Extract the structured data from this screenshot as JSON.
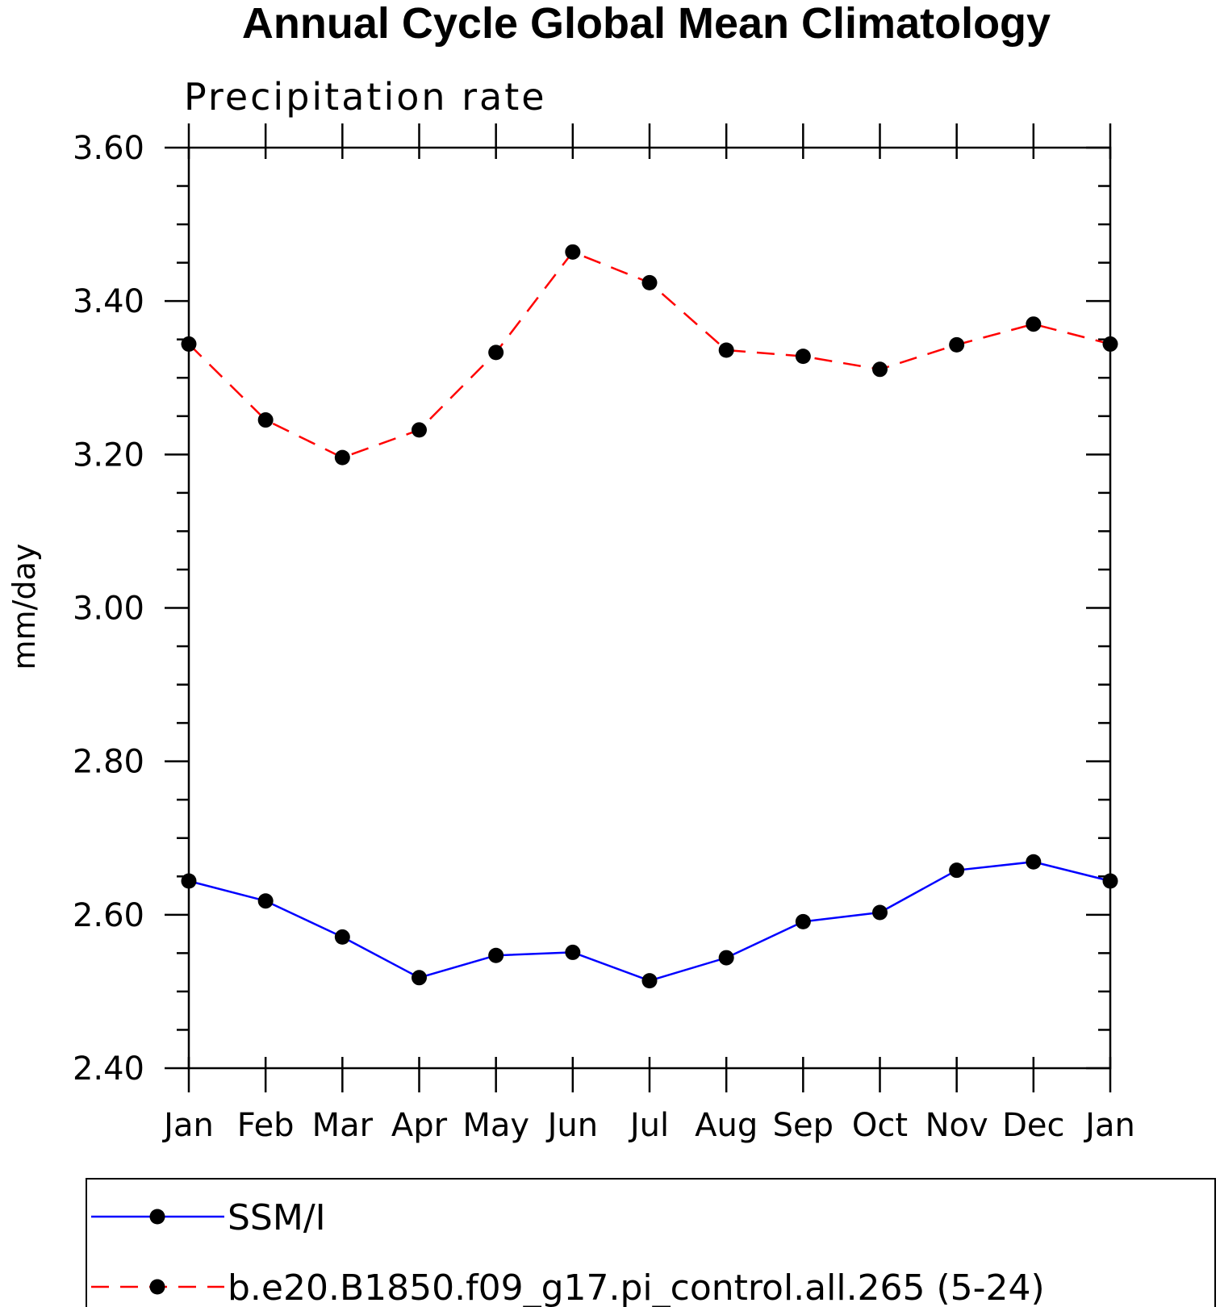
{
  "chart_data": {
    "type": "line",
    "title": "Annual Cycle Global Mean Climatology",
    "subtitle": "Precipitation rate",
    "xlabel": "",
    "ylabel": "mm/day",
    "categories": [
      "Jan",
      "Feb",
      "Mar",
      "Apr",
      "May",
      "Jun",
      "Jul",
      "Aug",
      "Sep",
      "Oct",
      "Nov",
      "Dec",
      "Jan"
    ],
    "ylim": [
      2.4,
      3.6
    ],
    "yticks": [
      "2.40",
      "2.60",
      "2.80",
      "3.00",
      "3.20",
      "3.40",
      "3.60"
    ],
    "grid": false,
    "legend_position": "bottom",
    "series": [
      {
        "name": "SSM/I",
        "color": "#0000ff",
        "line_style": "solid",
        "marker": "filled-circle",
        "values": [
          2.644,
          2.618,
          2.571,
          2.518,
          2.547,
          2.551,
          2.514,
          2.544,
          2.591,
          2.603,
          2.658,
          2.669,
          2.644
        ]
      },
      {
        "name": "b.e20.B1850.f09_g17.pi_control.all.265 (5-24)",
        "color": "#ff0000",
        "line_style": "dashed",
        "marker": "filled-circle",
        "values": [
          3.344,
          3.245,
          3.196,
          3.232,
          3.333,
          3.464,
          3.424,
          3.336,
          3.328,
          3.311,
          3.343,
          3.37,
          3.344
        ]
      }
    ]
  },
  "colors": {
    "axis": "#000000",
    "marker": "#000000"
  }
}
